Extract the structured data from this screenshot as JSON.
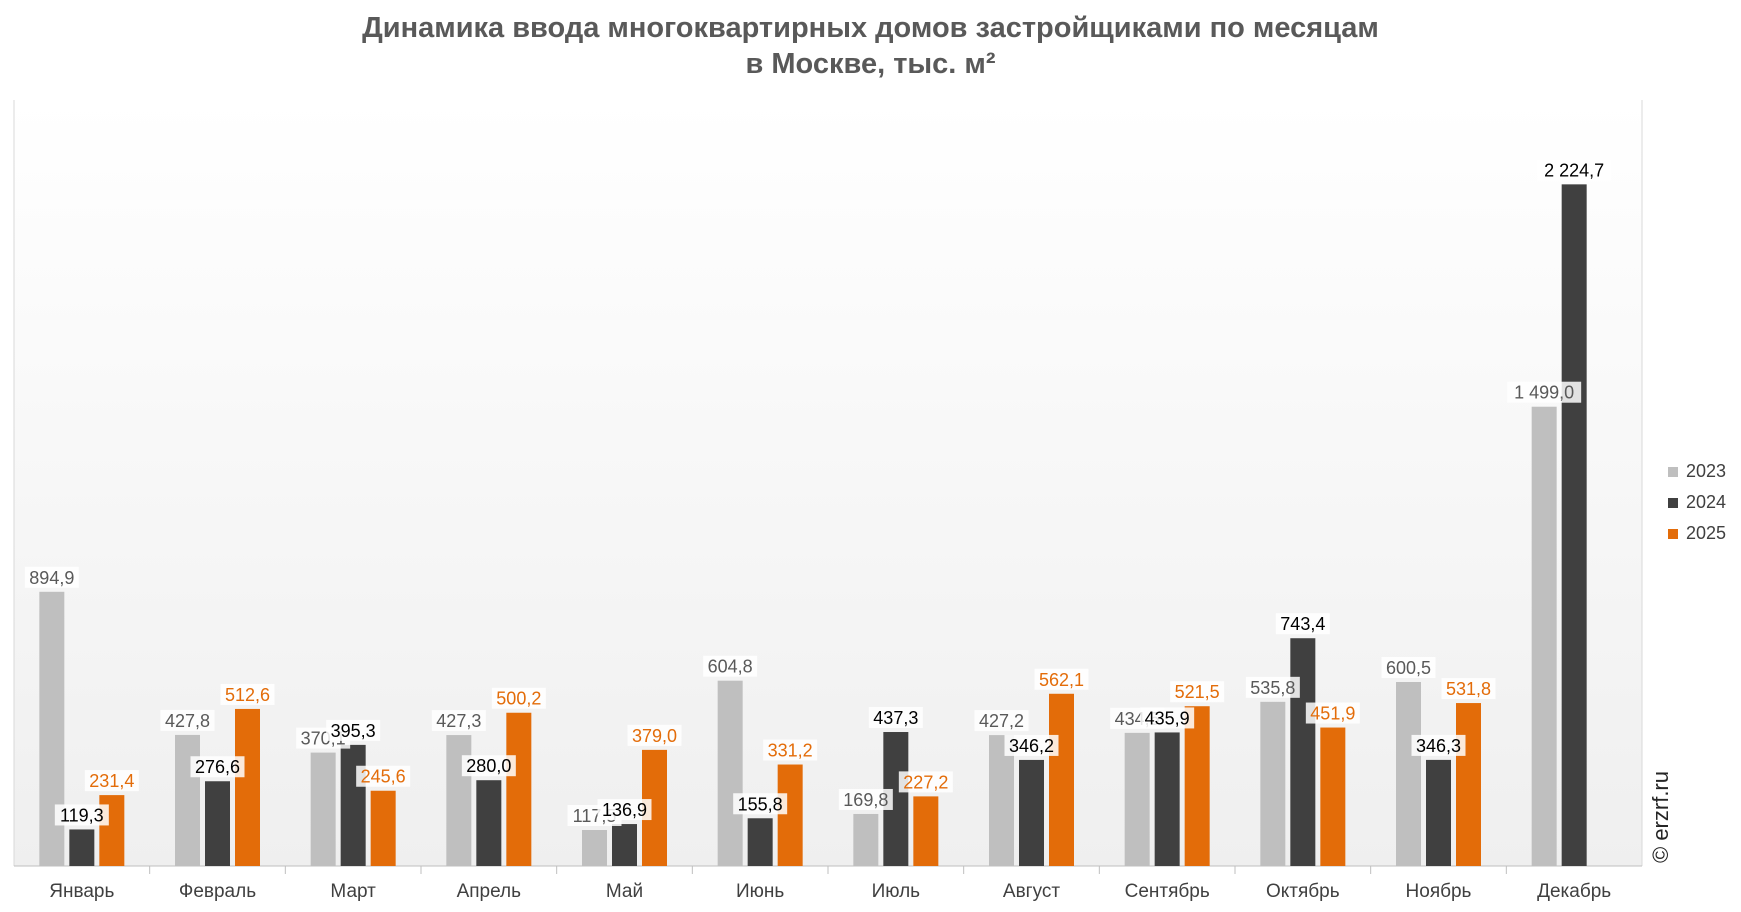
{
  "title_line1": "Динамика ввода многоквартирных домов застройщиками по месяцам",
  "title_line2": "в Москве, тыс. м²",
  "watermark": "© erzrf.ru",
  "chart_data": {
    "type": "bar",
    "title": "Динамика ввода многоквартирных домов застройщиками по месяцам в Москве, тыс. м²",
    "categories": [
      "Январь",
      "Февраль",
      "Март",
      "Апрель",
      "Май",
      "Июнь",
      "Июль",
      "Август",
      "Сентябрь",
      "Октябрь",
      "Ноябрь",
      "Декабрь"
    ],
    "series": [
      {
        "name": "2023",
        "color": "#bfbfbf",
        "label_color": "#595959",
        "values": [
          894.9,
          427.8,
          370.1,
          427.3,
          117.5,
          604.8,
          169.8,
          427.2,
          434.5,
          535.8,
          600.5,
          1499.0
        ],
        "labels": [
          "894,9",
          "427,8",
          "370,1",
          "427,3",
          "117,5",
          "604,8",
          "169,8",
          "427,2",
          "434,5",
          "535,8",
          "600,5",
          "1 499,0"
        ]
      },
      {
        "name": "2024",
        "color": "#404040",
        "label_color": "#000000",
        "values": [
          119.3,
          276.6,
          395.3,
          280.0,
          136.9,
          155.8,
          437.3,
          346.2,
          435.9,
          743.4,
          346.3,
          2224.7
        ],
        "labels": [
          "119,3",
          "276,6",
          "395,3",
          "280,0",
          "136,9",
          "155,8",
          "437,3",
          "346,2",
          "435,9",
          "743,4",
          "346,3",
          "2 224,7"
        ]
      },
      {
        "name": "2025",
        "color": "#e36c09",
        "label_color": "#e36c09",
        "values": [
          231.4,
          512.6,
          245.6,
          500.2,
          379.0,
          331.2,
          227.2,
          562.1,
          521.5,
          451.9,
          531.8,
          null
        ],
        "labels": [
          "231,4",
          "512,6",
          "245,6",
          "500,2",
          "379,0",
          "331,2",
          "227,2",
          "562,1",
          "521,5",
          "451,9",
          "531,8",
          ""
        ]
      }
    ],
    "ylim": [
      0,
      2500
    ],
    "grid": false,
    "legend_position": "right"
  }
}
